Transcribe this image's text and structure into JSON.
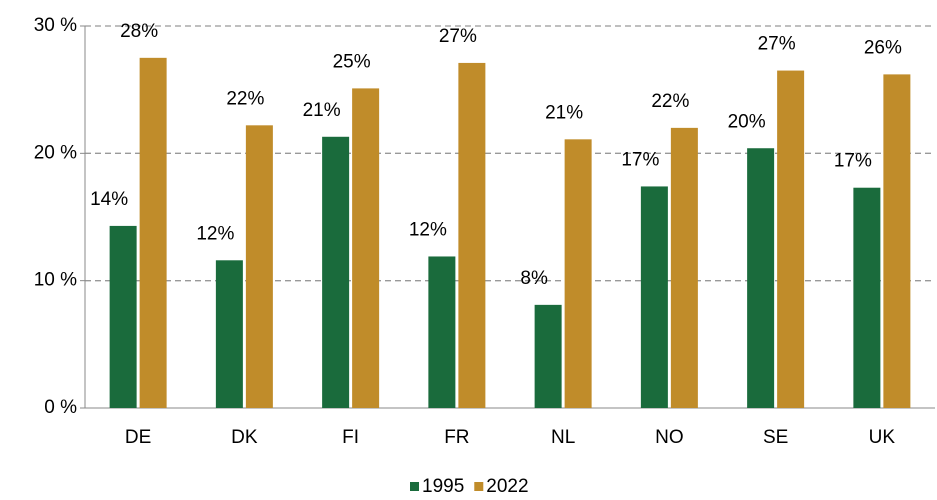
{
  "chart_data": {
    "type": "bar",
    "categories": [
      "DE",
      "DK",
      "FI",
      "FR",
      "NL",
      "NO",
      "SE",
      "UK"
    ],
    "series": [
      {
        "name": "1995",
        "color": "#1a6b3c",
        "values": [
          14.3,
          11.6,
          21.3,
          11.9,
          8.1,
          17.4,
          20.4,
          17.3
        ],
        "value_labels": [
          "14%",
          "12%",
          "21%",
          "12%",
          "8%",
          "17%",
          "20%",
          "17%"
        ]
      },
      {
        "name": "2022",
        "color": "#c08c2a",
        "values": [
          27.5,
          22.2,
          25.1,
          27.1,
          21.1,
          22.0,
          26.5,
          26.2
        ],
        "value_labels": [
          "28%",
          "22%",
          "25%",
          "27%",
          "21%",
          "22%",
          "27%",
          "26%"
        ]
      }
    ],
    "ylim": [
      0,
      30
    ],
    "yticks": [
      {
        "value": 0,
        "label": "0 %"
      },
      {
        "value": 10,
        "label": "10 %"
      },
      {
        "value": 20,
        "label": "20 %"
      },
      {
        "value": 30,
        "label": "30 %"
      }
    ],
    "grid": true,
    "legend": "bottom"
  }
}
